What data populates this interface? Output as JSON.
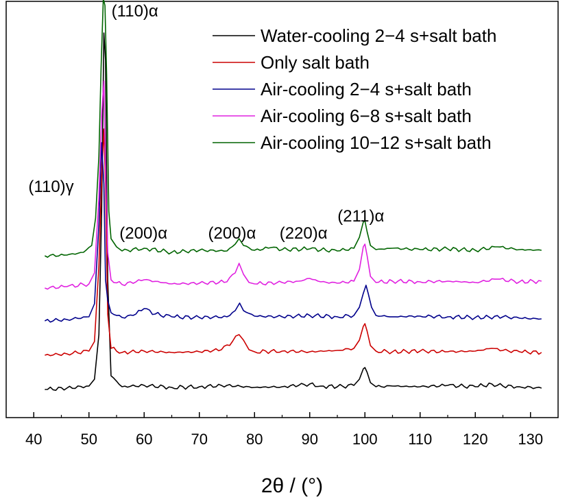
{
  "chart_data": {
    "type": "line",
    "title": "",
    "xlabel": "2θ / (°)",
    "ylabel": "",
    "xlim": [
      35,
      135
    ],
    "ylim": [
      0,
      610
    ],
    "x_ticks": [
      40,
      50,
      60,
      70,
      80,
      90,
      100,
      110,
      120,
      130
    ],
    "x_tick_labels": [
      "40",
      "50",
      "60",
      "70",
      "80",
      "90",
      "100",
      "110",
      "120",
      "130"
    ],
    "y_ticks_shown": false,
    "grid": false,
    "legend_position": "top-right",
    "series": [
      {
        "name": "Water-cooling 2−4 s+salt bath",
        "color": "#000000",
        "x": [
          42,
          46,
          50,
          51,
          51.8,
          52.3,
          52.7,
          53,
          53.4,
          54,
          56,
          60,
          65,
          70,
          75,
          80,
          85,
          88,
          90,
          92,
          95,
          98,
          99,
          99.7,
          100,
          100.4,
          101,
          102,
          105,
          110,
          115,
          120,
          123,
          125,
          128,
          132
        ],
        "y": [
          40,
          42,
          45,
          55,
          120,
          300,
          560,
          520,
          200,
          60,
          44,
          46,
          43,
          44,
          46,
          43,
          44,
          46,
          48,
          45,
          44,
          46,
          55,
          70,
          72,
          65,
          50,
          44,
          45,
          44,
          46,
          44,
          48,
          45,
          44,
          42
        ]
      },
      {
        "name": "Only salt bath",
        "color": "#cc0000",
        "x": [
          42,
          46,
          50,
          51,
          51.8,
          52.3,
          52.7,
          53,
          53.4,
          54,
          56,
          60,
          65,
          70,
          74,
          76,
          77.2,
          78,
          79,
          80,
          85,
          90,
          95,
          98,
          99,
          99.7,
          100,
          100.4,
          101,
          102,
          105,
          110,
          115,
          120,
          123,
          125,
          128,
          132
        ],
        "y": [
          90,
          92,
          96,
          110,
          220,
          350,
          420,
          340,
          150,
          100,
          94,
          96,
          94,
          95,
          98,
          110,
          120,
          112,
          98,
          95,
          96,
          95,
          97,
          100,
          112,
          132,
          136,
          125,
          104,
          96,
          95,
          96,
          95,
          96,
          100,
          97,
          95,
          94
        ]
      },
      {
        "name": "Air-cooling 2−4 s+salt bath",
        "color": "#00008b",
        "x": [
          42,
          46,
          50,
          51,
          51.8,
          52.3,
          52.7,
          53,
          53.4,
          54,
          56,
          58,
          60,
          62,
          65,
          70,
          75,
          76.5,
          77.3,
          78,
          80,
          85,
          90,
          95,
          98,
          99,
          99.7,
          100.2,
          100.6,
          101.2,
          102,
          105,
          110,
          115,
          120,
          125,
          128,
          132
        ],
        "y": [
          140,
          142,
          146,
          165,
          280,
          400,
          340,
          200,
          170,
          152,
          145,
          148,
          158,
          150,
          146,
          145,
          146,
          155,
          166,
          155,
          147,
          146,
          148,
          146,
          148,
          160,
          180,
          192,
          180,
          160,
          148,
          146,
          147,
          146,
          145,
          146,
          144,
          143
        ]
      },
      {
        "name": "Air-cooling 6−8 s+salt bath",
        "color": "#e020e0",
        "x": [
          42,
          46,
          50,
          51,
          51.8,
          52.3,
          52.7,
          53,
          53.4,
          54,
          56,
          60,
          65,
          70,
          75,
          76.5,
          77.2,
          78,
          79,
          80,
          85,
          88,
          90,
          92,
          95,
          98,
          99,
          99.7,
          100,
          100.4,
          101,
          102,
          105,
          110,
          115,
          120,
          124,
          128,
          132
        ],
        "y": [
          188,
          190,
          194,
          210,
          320,
          440,
          490,
          360,
          240,
          200,
          193,
          200,
          194,
          195,
          197,
          210,
          224,
          208,
          196,
          194,
          196,
          198,
          202,
          197,
          195,
          198,
          215,
          248,
          252,
          235,
          205,
          196,
          198,
          197,
          198,
          196,
          201,
          197,
          198
        ]
      },
      {
        "name": "Air-cooling 10−12 s+salt bath",
        "color": "#006400",
        "x": [
          42,
          46,
          49,
          50.5,
          51.2,
          51.8,
          52.2,
          52.6,
          52.9,
          53.2,
          53.6,
          54,
          55,
          56,
          60,
          65,
          70,
          75,
          76.5,
          77.2,
          78,
          80,
          83,
          85,
          90,
          95,
          98,
          99,
          99.7,
          100,
          100.4,
          101,
          102,
          105,
          110,
          115,
          120,
          124,
          128,
          132
        ],
        "y": [
          235,
          236,
          240,
          250,
          290,
          380,
          510,
          610,
          600,
          500,
          300,
          260,
          248,
          242,
          246,
          240,
          243,
          242,
          252,
          260,
          250,
          243,
          247,
          244,
          245,
          242,
          246,
          262,
          284,
          286,
          270,
          250,
          244,
          246,
          244,
          245,
          243,
          248,
          244,
          243
        ]
      }
    ],
    "annotations": [
      {
        "text": "(110)α",
        "x": 52.6,
        "y": 610
      },
      {
        "text": "(110)γ",
        "x": 51.2,
        "y": 320
      },
      {
        "text": "(200)α",
        "x": 60,
        "y": 265
      },
      {
        "text": "(200)α",
        "x": 77.3,
        "y": 265
      },
      {
        "text": "(220)α",
        "x": 89.5,
        "y": 265
      },
      {
        "text": "(211)α",
        "x": 100,
        "y": 295
      }
    ]
  }
}
